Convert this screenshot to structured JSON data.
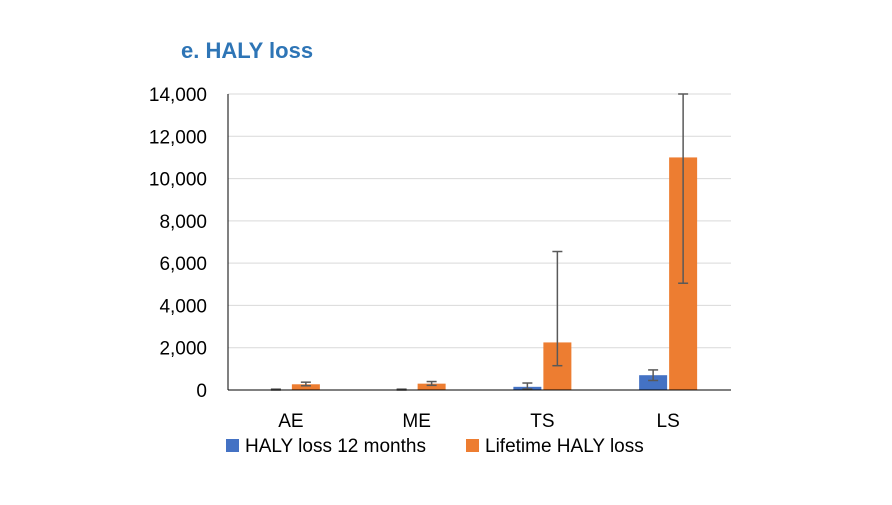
{
  "chart_data": {
    "type": "bar",
    "title": "e. HALY loss",
    "xlabel": "",
    "ylabel": "",
    "categories": [
      "AE",
      "ME",
      "TS",
      "LS"
    ],
    "ylim": [
      0,
      14000
    ],
    "yticks": [
      0,
      2000,
      4000,
      6000,
      8000,
      10000,
      12000,
      14000
    ],
    "ytick_labels": [
      "0",
      "2,000",
      "4,000",
      "6,000",
      "8,000",
      "10,000",
      "12,000",
      "14,000"
    ],
    "grid": true,
    "legend_position": "bottom",
    "series": [
      {
        "name": "HALY loss 12 months",
        "color": "#4472C4",
        "values": [
          20,
          20,
          150,
          700
        ],
        "error_low": [
          0,
          0,
          50,
          450
        ],
        "error_high": [
          40,
          40,
          330,
          950
        ]
      },
      {
        "name": "Lifetime HALY loss",
        "color": "#ED7D31",
        "values": [
          270,
          300,
          2250,
          11000
        ],
        "error_low": [
          200,
          220,
          1150,
          5050
        ],
        "error_high": [
          370,
          400,
          6550,
          14000
        ]
      }
    ]
  },
  "colors": {
    "title": "#2E75B6",
    "gridline": "#D9D9D9",
    "axis": "#000000",
    "error_bar": "#595959"
  }
}
